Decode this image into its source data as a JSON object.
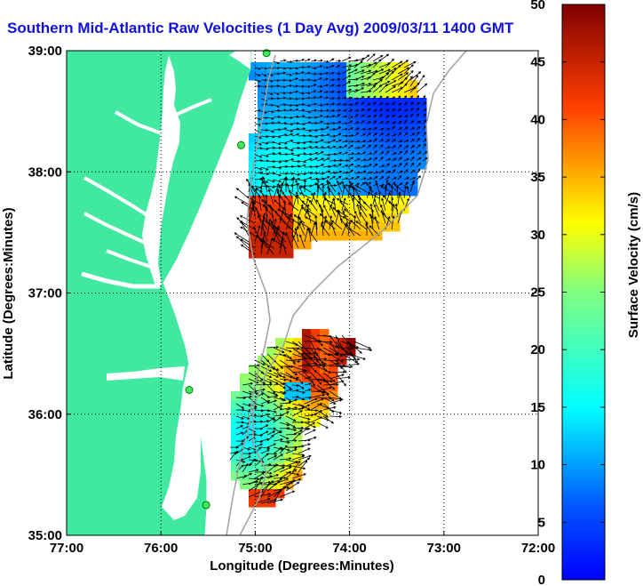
{
  "title": "Southern Mid-Atlantic Raw Velocities (1 Day Avg) 2009/03/11 1400 GMT",
  "map": {
    "xlabel": "Longitude (Degrees:Minutes)",
    "ylabel": "Latitude (Degrees:Minutes)",
    "lon_range": [
      -77,
      -72
    ],
    "lat_range": [
      35,
      39
    ],
    "lon_ticks": [
      {
        "value": -77,
        "label": "77:00"
      },
      {
        "value": -76,
        "label": "76:00"
      },
      {
        "value": -75,
        "label": "75:00"
      },
      {
        "value": -74,
        "label": "74:00"
      },
      {
        "value": -73,
        "label": "73:00"
      },
      {
        "value": -72,
        "label": "72:00"
      }
    ],
    "lat_ticks": [
      {
        "value": 39,
        "label": "39:00"
      },
      {
        "value": 38,
        "label": "38:00"
      },
      {
        "value": 37,
        "label": "37:00"
      },
      {
        "value": 36,
        "label": "36:00"
      },
      {
        "value": 35,
        "label": "35:00"
      }
    ],
    "land_color": "#40e8a0",
    "water_color": "#ffffff",
    "grid": "dotted",
    "stations": [
      {
        "lon": -74.88,
        "lat": 38.98
      },
      {
        "lon": -75.15,
        "lat": 38.22
      },
      {
        "lon": -75.7,
        "lat": 36.2
      },
      {
        "lon": -75.52,
        "lat": 35.25
      }
    ],
    "regions": [
      {
        "name": "northern-field",
        "speed_range": [
          3,
          45
        ]
      },
      {
        "name": "southern-field",
        "speed_range": [
          8,
          50
        ]
      }
    ]
  },
  "colorbar": {
    "label": "Surface Velocity (cm/s)",
    "min": 0,
    "max": 50,
    "ticks": [
      "0",
      "5",
      "10",
      "15",
      "20",
      "25",
      "30",
      "35",
      "40",
      "45",
      "50"
    ],
    "colormap": "jet"
  }
}
